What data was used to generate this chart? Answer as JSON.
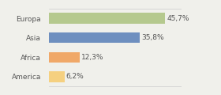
{
  "categories": [
    "Europa",
    "Asia",
    "Africa",
    "America"
  ],
  "values": [
    45.7,
    35.8,
    12.3,
    6.2
  ],
  "labels": [
    "45,7%",
    "35,8%",
    "12,3%",
    "6,2%"
  ],
  "bar_colors": [
    "#b5c98e",
    "#6e8fbf",
    "#f0a868",
    "#f5d080"
  ],
  "background_color": "#f0f0eb",
  "xlim": [
    0,
    52
  ],
  "bar_height": 0.55,
  "label_fontsize": 6.5,
  "category_fontsize": 6.5,
  "label_color": "#555555",
  "border_color": "#cccccc"
}
